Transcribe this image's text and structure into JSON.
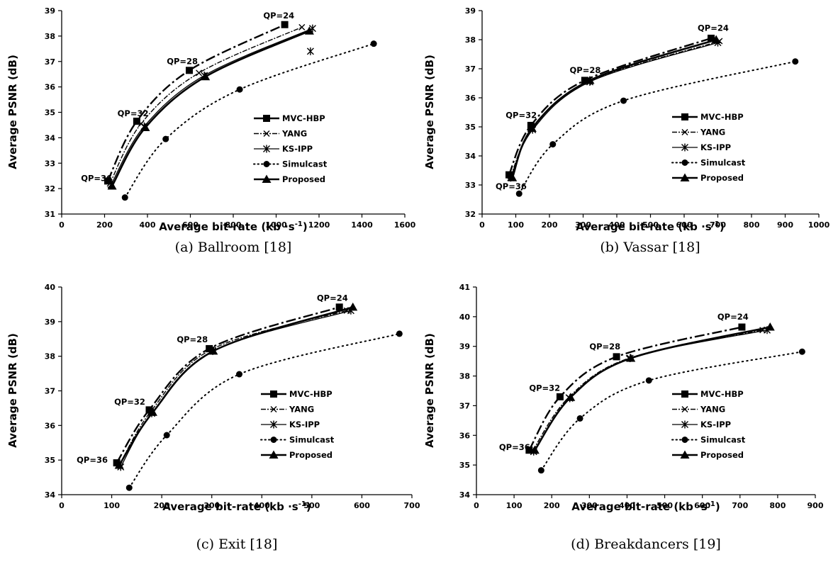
{
  "series_styles": [
    {
      "name": "MVC-HBP",
      "marker": "square",
      "dash": "dashdot",
      "width": 2.4
    },
    {
      "name": "YANG",
      "marker": "x",
      "dash": "dash-fine",
      "width": 1.4
    },
    {
      "name": "KS-IPP",
      "marker": "star",
      "dash": "solid",
      "width": 1.3
    },
    {
      "name": "Simulcast",
      "marker": "circle",
      "dash": "dotted",
      "width": 2.0
    },
    {
      "name": "Proposed",
      "marker": "triangle",
      "dash": "solid",
      "width": 2.6
    }
  ],
  "chart_data": [
    {
      "type": "line",
      "caption": "(a) Ballroom [18]",
      "xlabel": "Average bit-rate (kb ·s",
      "xlabel_sup": "-1",
      "xlabel_end": ")",
      "ylabel": "Average PSNR (dB)",
      "xlim": [
        0,
        1600
      ],
      "ylim": [
        31,
        39
      ],
      "xticks": [
        0,
        200,
        400,
        600,
        800,
        1000,
        1200,
        1400,
        1600
      ],
      "yticks": [
        31,
        32,
        33,
        34,
        35,
        36,
        37,
        38,
        39
      ],
      "legend_position": "center-right",
      "series": [
        {
          "name": "MVC-HBP",
          "points": [
            [
              215,
              32.3
            ],
            [
              350,
              34.65
            ],
            [
              595,
              36.65
            ],
            [
              1040,
              38.45
            ]
          ]
        },
        {
          "name": "YANG",
          "points": [
            [
              225,
              32.2
            ],
            [
              370,
              34.55
            ],
            [
              640,
              36.55
            ],
            [
              1120,
              38.35
            ]
          ]
        },
        {
          "name": "KS-IPP",
          "points": [
            [
              230,
              32.15
            ],
            [
              385,
              34.45
            ],
            [
              665,
              36.45
            ],
            [
              1170,
              38.3
            ]
          ]
        },
        {
          "name": "Simulcast",
          "points": [
            [
              295,
              31.65
            ],
            [
              485,
              33.95
            ],
            [
              830,
              35.9
            ],
            [
              1455,
              37.7
            ]
          ]
        },
        {
          "name": "Proposed",
          "points": [
            [
              235,
              32.1
            ],
            [
              390,
              34.4
            ],
            [
              670,
              36.4
            ],
            [
              1155,
              38.2
            ]
          ]
        }
      ],
      "extra_points": [
        {
          "series": "KS-IPP",
          "point": [
            1160,
            37.4
          ]
        }
      ],
      "annotations": [
        {
          "text": "QP=24",
          "x": 940,
          "y": 38.7
        },
        {
          "text": "QP=28",
          "x": 490,
          "y": 36.9
        },
        {
          "text": "QP=32",
          "x": 260,
          "y": 34.85
        },
        {
          "text": "QP=36",
          "x": 90,
          "y": 32.3
        }
      ]
    },
    {
      "type": "line",
      "caption": "(b) Vassar [18]",
      "xlabel": "Average bit-rate (kb ·s",
      "xlabel_sup": "-1",
      "xlabel_end": ")",
      "ylabel": "Average PSNR (dB)",
      "xlim": [
        0,
        1000
      ],
      "ylim": [
        32,
        39
      ],
      "xticks": [
        0,
        100,
        200,
        300,
        400,
        500,
        600,
        700,
        800,
        900,
        1000
      ],
      "yticks": [
        32,
        33,
        34,
        35,
        36,
        37,
        38,
        39
      ],
      "legend_position": "center-right",
      "series": [
        {
          "name": "MVC-HBP",
          "points": [
            [
              80,
              33.35
            ],
            [
              145,
              35.05
            ],
            [
              305,
              36.6
            ],
            [
              680,
              38.05
            ]
          ]
        },
        {
          "name": "YANG",
          "points": [
            [
              85,
              33.3
            ],
            [
              150,
              34.95
            ],
            [
              315,
              36.55
            ],
            [
              705,
              37.95
            ]
          ]
        },
        {
          "name": "KS-IPP",
          "points": [
            [
              85,
              33.25
            ],
            [
              150,
              34.9
            ],
            [
              320,
              36.55
            ],
            [
              700,
              37.9
            ]
          ]
        },
        {
          "name": "Simulcast",
          "points": [
            [
              110,
              32.7
            ],
            [
              210,
              34.4
            ],
            [
              420,
              35.9
            ],
            [
              930,
              37.25
            ]
          ]
        },
        {
          "name": "Proposed",
          "points": [
            [
              90,
              33.25
            ],
            [
              148,
              34.95
            ],
            [
              320,
              36.6
            ],
            [
              695,
              38.0
            ]
          ]
        }
      ],
      "extra_points": [],
      "annotations": [
        {
          "text": "QP=24",
          "x": 640,
          "y": 38.3
        },
        {
          "text": "QP=28",
          "x": 260,
          "y": 36.85
        },
        {
          "text": "QP=32",
          "x": 70,
          "y": 35.3
        },
        {
          "text": "QP=36",
          "x": 40,
          "y": 32.85
        }
      ]
    },
    {
      "type": "line",
      "caption": "(c) Exit [18]",
      "xlabel": "Average bit-rate (kb ·s",
      "xlabel_sup": "-1",
      "xlabel_end": ")",
      "ylabel": "Average PSNR (dB)",
      "xlim": [
        0,
        700
      ],
      "ylim": [
        34,
        40
      ],
      "xticks": [
        0,
        100,
        200,
        300,
        400,
        500,
        600,
        700
      ],
      "yticks": [
        34,
        35,
        36,
        37,
        38,
        39,
        40
      ],
      "legend_position": "center-right",
      "series": [
        {
          "name": "MVC-HBP",
          "points": [
            [
              110,
              34.92
            ],
            [
              175,
              36.45
            ],
            [
              295,
              38.22
            ],
            [
              555,
              39.42
            ]
          ]
        },
        {
          "name": "YANG",
          "points": [
            [
              115,
              34.85
            ],
            [
              178,
              36.4
            ],
            [
              300,
              38.2
            ],
            [
              570,
              39.32
            ]
          ]
        },
        {
          "name": "KS-IPP",
          "points": [
            [
              118,
              34.8
            ],
            [
              180,
              36.35
            ],
            [
              302,
              38.15
            ],
            [
              578,
              39.32
            ]
          ]
        },
        {
          "name": "Simulcast",
          "points": [
            [
              135,
              34.2
            ],
            [
              210,
              35.72
            ],
            [
              355,
              37.48
            ],
            [
              675,
              38.65
            ]
          ]
        },
        {
          "name": "Proposed",
          "points": [
            [
              115,
              34.85
            ],
            [
              182,
              36.38
            ],
            [
              303,
              38.15
            ],
            [
              582,
              39.42
            ]
          ]
        }
      ],
      "extra_points": [],
      "annotations": [
        {
          "text": "QP=24",
          "x": 510,
          "y": 39.6
        },
        {
          "text": "QP=28",
          "x": 230,
          "y": 38.4
        },
        {
          "text": "QP=32",
          "x": 105,
          "y": 36.6
        },
        {
          "text": "QP=36",
          "x": 30,
          "y": 34.92
        }
      ]
    },
    {
      "type": "line",
      "caption": "(d) Breakdancers [19]",
      "xlabel": "Average bit-rate (kb ·s",
      "xlabel_sup": "-1",
      "xlabel_end": ")",
      "ylabel": "Average PSNR (dB)",
      "xlim": [
        0,
        900
      ],
      "ylim": [
        34,
        41
      ],
      "xticks": [
        0,
        100,
        200,
        300,
        400,
        500,
        600,
        700,
        800,
        900
      ],
      "yticks": [
        34,
        35,
        36,
        37,
        38,
        39,
        40,
        41
      ],
      "legend_position": "center-right",
      "series": [
        {
          "name": "MVC-HBP",
          "points": [
            [
              140,
              35.5
            ],
            [
              222,
              37.3
            ],
            [
              372,
              38.65
            ],
            [
              705,
              39.65
            ]
          ]
        },
        {
          "name": "YANG",
          "points": [
            [
              150,
              35.5
            ],
            [
              245,
              37.28
            ],
            [
              405,
              38.6
            ],
            [
              760,
              39.55
            ]
          ]
        },
        {
          "name": "KS-IPP",
          "points": [
            [
              152,
              35.45
            ],
            [
              248,
              37.25
            ],
            [
              408,
              38.6
            ],
            [
              772,
              39.55
            ]
          ]
        },
        {
          "name": "Simulcast",
          "points": [
            [
              172,
              34.82
            ],
            [
              275,
              36.57
            ],
            [
              458,
              37.85
            ],
            [
              865,
              38.82
            ]
          ]
        },
        {
          "name": "Proposed",
          "points": [
            [
              155,
              35.5
            ],
            [
              250,
              37.28
            ],
            [
              410,
              38.6
            ],
            [
              780,
              39.65
            ]
          ]
        }
      ],
      "extra_points": [],
      "annotations": [
        {
          "text": "QP=24",
          "x": 640,
          "y": 39.9
        },
        {
          "text": "QP=28",
          "x": 300,
          "y": 38.9
        },
        {
          "text": "QP=32",
          "x": 140,
          "y": 37.5
        },
        {
          "text": "QP=36",
          "x": 60,
          "y": 35.5
        }
      ]
    }
  ]
}
